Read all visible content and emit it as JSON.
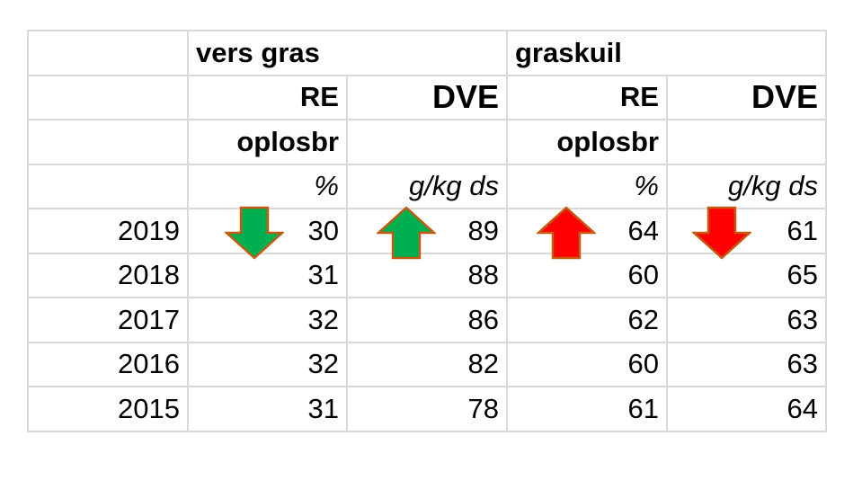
{
  "chart_data": {
    "type": "table",
    "groups": [
      "vers gras",
      "graskuil"
    ],
    "columns": [
      {
        "group": "vers gras",
        "measure": "RE",
        "sub": "oplosbr",
        "unit": "%"
      },
      {
        "group": "vers gras",
        "measure": "DVE",
        "sub": "",
        "unit": "g/kg ds"
      },
      {
        "group": "graskuil",
        "measure": "RE",
        "sub": "oplosbr",
        "unit": "%"
      },
      {
        "group": "graskuil",
        "measure": "DVE",
        "sub": "",
        "unit": "g/kg ds"
      }
    ],
    "rows": [
      {
        "year": "2019",
        "values": [
          30,
          89,
          64,
          61
        ]
      },
      {
        "year": "2018",
        "values": [
          31,
          88,
          60,
          65
        ]
      },
      {
        "year": "2017",
        "values": [
          32,
          86,
          62,
          63
        ]
      },
      {
        "year": "2016",
        "values": [
          32,
          82,
          60,
          63
        ]
      },
      {
        "year": "2015",
        "values": [
          31,
          78,
          61,
          64
        ]
      }
    ],
    "trend_arrows": [
      {
        "column": 0,
        "direction": "down",
        "color": "#00b050"
      },
      {
        "column": 1,
        "direction": "up",
        "color": "#00b050"
      },
      {
        "column": 2,
        "direction": "up",
        "color": "#ff0000"
      },
      {
        "column": 3,
        "direction": "down",
        "color": "#ff0000"
      }
    ],
    "arrow_border_color": "#c55a11"
  }
}
